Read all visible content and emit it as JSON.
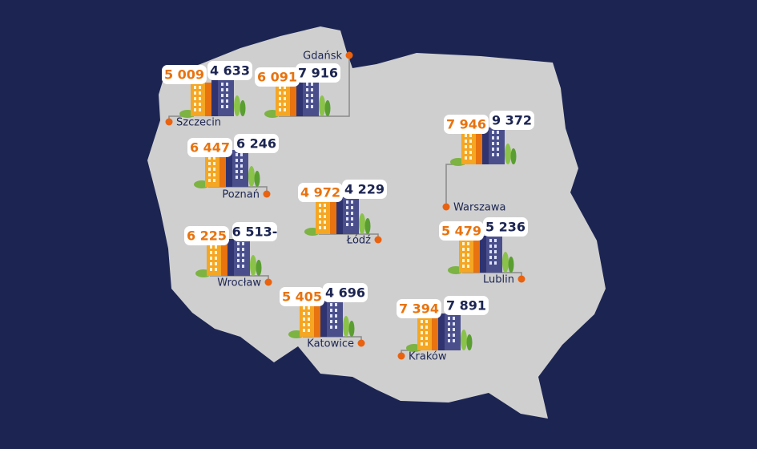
{
  "cities": [
    {
      "name": "Szczecin",
      "left_value": "5 009",
      "right_value": "4 633"
    },
    {
      "name": "Gdańsk",
      "left_value": "6 091",
      "right_value": "7 916"
    },
    {
      "name": "Poznań",
      "left_value": "6 447",
      "right_value": "6 246"
    },
    {
      "name": "Warszawa",
      "left_value": "7 946",
      "right_value": "9 372"
    },
    {
      "name": "Łódź",
      "left_value": "4 972",
      "right_value": "4 229"
    },
    {
      "name": "Wrocław",
      "left_value": "6 225",
      "right_value": "6 513-"
    },
    {
      "name": "Lublin",
      "left_value": "5 479",
      "right_value": "5 236"
    },
    {
      "name": "Katowice",
      "left_value": "5 405",
      "right_value": "4 696"
    },
    {
      "name": "Kraków",
      "left_value": "7 394",
      "right_value": "7 891"
    }
  ]
}
